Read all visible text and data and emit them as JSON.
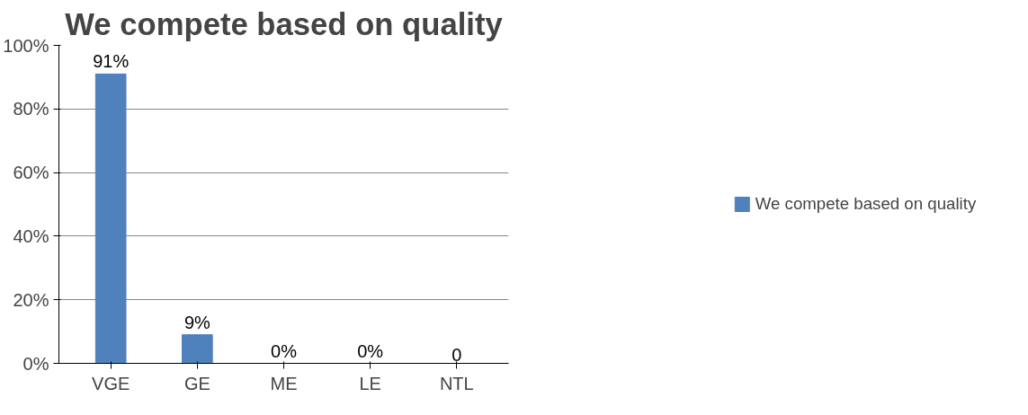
{
  "chart_data": {
    "type": "bar",
    "title": "We compete based on quality",
    "categories": [
      "VGE",
      "GE",
      "ME",
      "LE",
      "NTL"
    ],
    "series": [
      {
        "name": "We compete based on quality",
        "color": "#4f81bd",
        "values": [
          91,
          9,
          0,
          0,
          0
        ],
        "value_labels": [
          "91%",
          "9%",
          "0%",
          "0%",
          "0"
        ]
      }
    ],
    "ylim": [
      0,
      100
    ],
    "yticks": [
      {
        "value": 0,
        "label": "0%"
      },
      {
        "value": 20,
        "label": "20%"
      },
      {
        "value": 40,
        "label": "40%"
      },
      {
        "value": 60,
        "label": "60%"
      },
      {
        "value": 80,
        "label": "80%"
      },
      {
        "value": 100,
        "label": "100%"
      }
    ],
    "grid": "y",
    "legend": "right"
  }
}
